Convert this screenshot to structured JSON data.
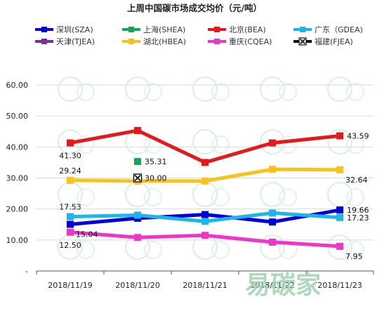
{
  "chart_data": {
    "type": "line",
    "title": "上周中国碳市场成交均价（元/吨）",
    "categories": [
      "2018/11/19",
      "2018/11/20",
      "2018/11/21",
      "2018/11/22",
      "2018/11/23"
    ],
    "ylim": [
      0,
      60
    ],
    "yticks": [
      "-",
      "10.00",
      "20.00",
      "30.00",
      "40.00",
      "50.00",
      "60.00"
    ],
    "grid": true,
    "legend_position": "top",
    "series": [
      {
        "name": "深圳(SZA)",
        "color": "#0000d8",
        "marker": "square",
        "values": [
          15.04,
          17.0,
          18.2,
          15.8,
          19.66
        ]
      },
      {
        "name": "上海(SHEA)",
        "color": "#1aa35b",
        "marker": "square",
        "values": [
          null,
          35.31,
          null,
          null,
          null
        ]
      },
      {
        "name": "北京(BEA)",
        "color": "#e8171c",
        "marker": "square",
        "values": [
          41.3,
          45.3,
          35.0,
          41.3,
          43.59
        ]
      },
      {
        "name": "广东（GDEA)",
        "color": "#1fb5ec",
        "marker": "square",
        "values": [
          17.53,
          18.0,
          16.0,
          18.7,
          17.23
        ]
      },
      {
        "name": "天津(TJEA)",
        "color": "#7a2f9e",
        "marker": "square",
        "values": [
          null,
          null,
          null,
          null,
          null
        ]
      },
      {
        "name": "湖北(HBEA)",
        "color": "#f7c21b",
        "marker": "square",
        "values": [
          29.24,
          29.0,
          29.0,
          32.8,
          32.64
        ]
      },
      {
        "name": "重庆(CQEA)",
        "color": "#ee35c9",
        "marker": "square",
        "values": [
          12.5,
          10.8,
          11.5,
          9.3,
          7.95
        ]
      },
      {
        "name": "福建(FJEA)",
        "color": "#111111",
        "marker": "x",
        "values": [
          null,
          30.0,
          null,
          null,
          null
        ]
      }
    ],
    "data_labels": [
      {
        "series": "北京(BEA)",
        "index": 0,
        "text": "41.30",
        "pos": "below"
      },
      {
        "series": "北京(BEA)",
        "index": 4,
        "text": "43.59",
        "pos": "right"
      },
      {
        "series": "上海(SHEA)",
        "index": 1,
        "text": "35.31",
        "pos": "right"
      },
      {
        "series": "湖北(HBEA)",
        "index": 0,
        "text": "29.24",
        "pos": "above"
      },
      {
        "series": "湖北(HBEA)",
        "index": 4,
        "text": "32.64",
        "pos": "right-below"
      },
      {
        "series": "福建(FJEA)",
        "index": 1,
        "text": "30.00",
        "pos": "right"
      },
      {
        "series": "广东（GDEA)",
        "index": 0,
        "text": "17.53",
        "pos": "above"
      },
      {
        "series": "广东（GDEA)",
        "index": 4,
        "text": "17.23",
        "pos": "right"
      },
      {
        "series": "深圳(SZA)",
        "index": 0,
        "text": "15.04",
        "pos": "right-below"
      },
      {
        "series": "深圳(SZA)",
        "index": 4,
        "text": "19.66",
        "pos": "right"
      },
      {
        "series": "重庆(CQEA)",
        "index": 0,
        "text": "12.50",
        "pos": "below"
      },
      {
        "series": "重庆(CQEA)",
        "index": 4,
        "text": "7.95",
        "pos": "right-below"
      }
    ]
  },
  "watermark": {
    "text": "易碳家",
    "color": "#9fd1b0"
  }
}
